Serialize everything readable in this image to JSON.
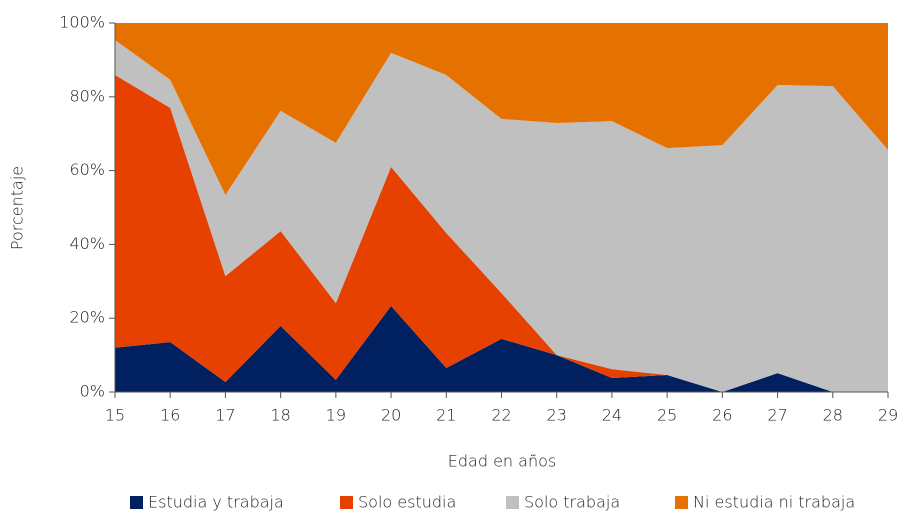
{
  "chart_data": {
    "type": "stacked_area",
    "x_label": "Edad en años",
    "y_label": "Porcentaje",
    "x": [
      15,
      16,
      17,
      18,
      19,
      20,
      21,
      22,
      23,
      24,
      25,
      26,
      27,
      28,
      29
    ],
    "xlim": [
      15,
      29
    ],
    "xticks": [
      15,
      16,
      17,
      18,
      19,
      20,
      21,
      22,
      23,
      24,
      25,
      26,
      27,
      28,
      29
    ],
    "ylim": [
      0,
      100
    ],
    "yticks": [
      {
        "value": 0,
        "label": "0%"
      },
      {
        "value": 20,
        "label": "20%"
      },
      {
        "value": 40,
        "label": "40%"
      },
      {
        "value": 60,
        "label": "60%"
      },
      {
        "value": 80,
        "label": "80%"
      },
      {
        "value": 100,
        "label": "100%"
      }
    ],
    "legend": "bottom",
    "series": [
      {
        "name": "Estudia y trabaja",
        "color": "#002060",
        "values": [
          12,
          13.5,
          2.7,
          17.9,
          3.3,
          23.3,
          6.5,
          14.4,
          10,
          3.8,
          4.6,
          0,
          5.1,
          0,
          0
        ]
      },
      {
        "name": "Solo estudia",
        "color": "#e64100",
        "values": [
          73.9,
          63.5,
          28.7,
          25.7,
          20.8,
          37.7,
          36.6,
          12.4,
          0,
          2.4,
          0,
          0,
          0,
          0,
          0
        ]
      },
      {
        "name": "Solo trabaja",
        "color": "#c0c0c0",
        "values": [
          9.5,
          7.6,
          22,
          32.6,
          43.4,
          30.9,
          42.8,
          47.2,
          62.9,
          67.2,
          61.5,
          66.9,
          78.1,
          82.9,
          65.6
        ]
      },
      {
        "name": "Ni estudia ni trabaja",
        "color": "#e57200",
        "values": [
          4.6,
          15.4,
          46.6,
          23.8,
          32.5,
          8.1,
          14.1,
          26,
          27.1,
          26.6,
          33.9,
          33.1,
          16.8,
          17.1,
          34.4
        ]
      }
    ]
  }
}
